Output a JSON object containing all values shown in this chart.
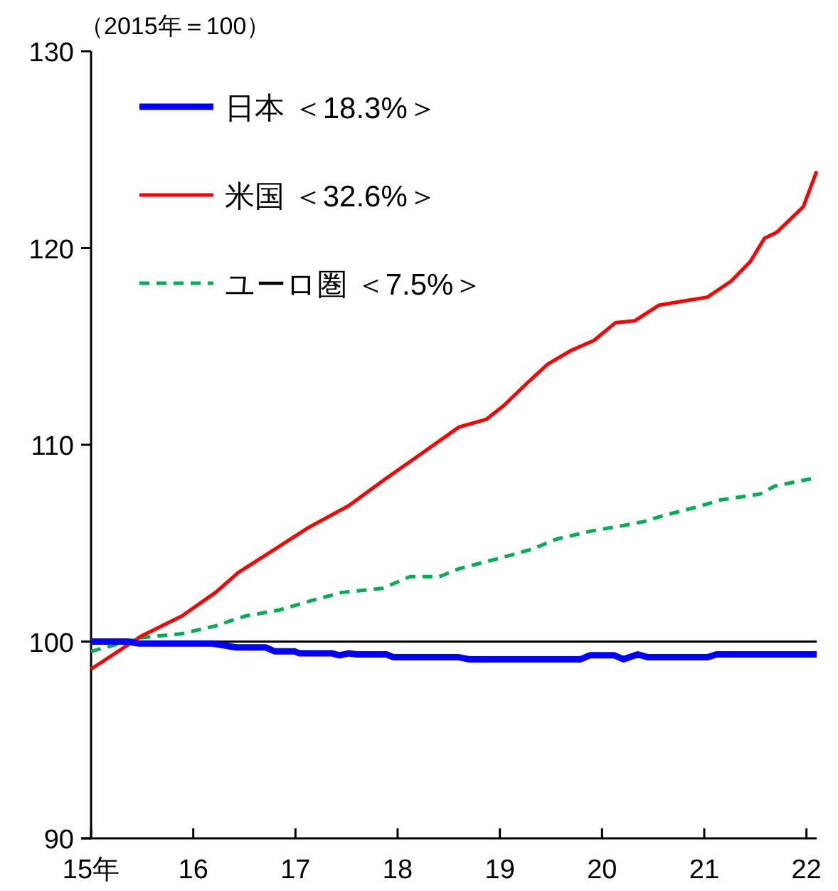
{
  "chart_data": {
    "type": "line",
    "ylabel": "（2015年＝100）",
    "xlim": [
      15,
      22.1
    ],
    "xticks": [
      {
        "value": 15,
        "label": "15年"
      },
      16,
      17,
      18,
      19,
      20,
      21,
      22
    ],
    "ylim": [
      90,
      130
    ],
    "yticks": [
      90,
      100,
      110,
      120,
      130
    ],
    "legend": "top left",
    "ref_lines": [
      {
        "axis": "y",
        "value": 100,
        "color": "#000000"
      }
    ],
    "series": [
      {
        "name": "日本 ＜18.3%＞",
        "color": "#0000ff",
        "line_style": "solid",
        "x": [
          15.0,
          15.36,
          15.47,
          16.19,
          16.42,
          16.71,
          16.8,
          16.99,
          17.04,
          17.36,
          17.43,
          17.52,
          17.6,
          17.89,
          17.96,
          18.6,
          18.7,
          19.79,
          19.88,
          20.12,
          20.21,
          20.35,
          20.45,
          21.03,
          21.12,
          22.1
        ],
        "values": [
          100.0,
          100.0,
          99.9,
          99.9,
          99.7,
          99.7,
          99.5,
          99.5,
          99.4,
          99.4,
          99.3,
          99.4,
          99.35,
          99.35,
          99.2,
          99.2,
          99.1,
          99.1,
          99.3,
          99.3,
          99.1,
          99.35,
          99.2,
          99.2,
          99.35,
          99.35
        ]
      },
      {
        "name": "米国 ＜32.6%＞",
        "color": "#ff0000",
        "line_style": "solid",
        "x": [
          15.0,
          15.5,
          15.89,
          16.22,
          16.44,
          16.8,
          17.13,
          17.52,
          17.89,
          18.22,
          18.6,
          18.87,
          19.04,
          19.28,
          19.47,
          19.7,
          19.92,
          20.13,
          20.32,
          20.56,
          20.79,
          21.03,
          21.26,
          21.45,
          21.59,
          21.71,
          21.97,
          22.1
        ],
        "values": [
          98.6,
          100.3,
          101.3,
          102.5,
          103.5,
          104.7,
          105.8,
          106.9,
          108.3,
          109.5,
          110.9,
          111.3,
          112.0,
          113.2,
          114.1,
          114.8,
          115.3,
          116.2,
          116.3,
          117.1,
          117.3,
          117.5,
          118.3,
          119.3,
          120.5,
          120.8,
          122.1,
          123.9
        ]
      },
      {
        "name": "ユーロ圏 ＜7.5%＞",
        "color": "#00b050",
        "line_style": "dashed",
        "x": [
          15.0,
          15.5,
          15.89,
          16.22,
          16.51,
          16.84,
          17.17,
          17.46,
          17.85,
          18.12,
          18.41,
          18.6,
          18.97,
          19.32,
          19.55,
          19.88,
          20.21,
          20.41,
          20.6,
          20.97,
          21.16,
          21.55,
          21.69,
          22.07
        ],
        "values": [
          99.5,
          100.2,
          100.4,
          100.8,
          101.3,
          101.6,
          102.1,
          102.5,
          102.7,
          103.3,
          103.3,
          103.7,
          104.2,
          104.7,
          105.2,
          105.6,
          105.9,
          106.1,
          106.4,
          106.9,
          107.2,
          107.5,
          107.9,
          108.3
        ]
      }
    ]
  }
}
